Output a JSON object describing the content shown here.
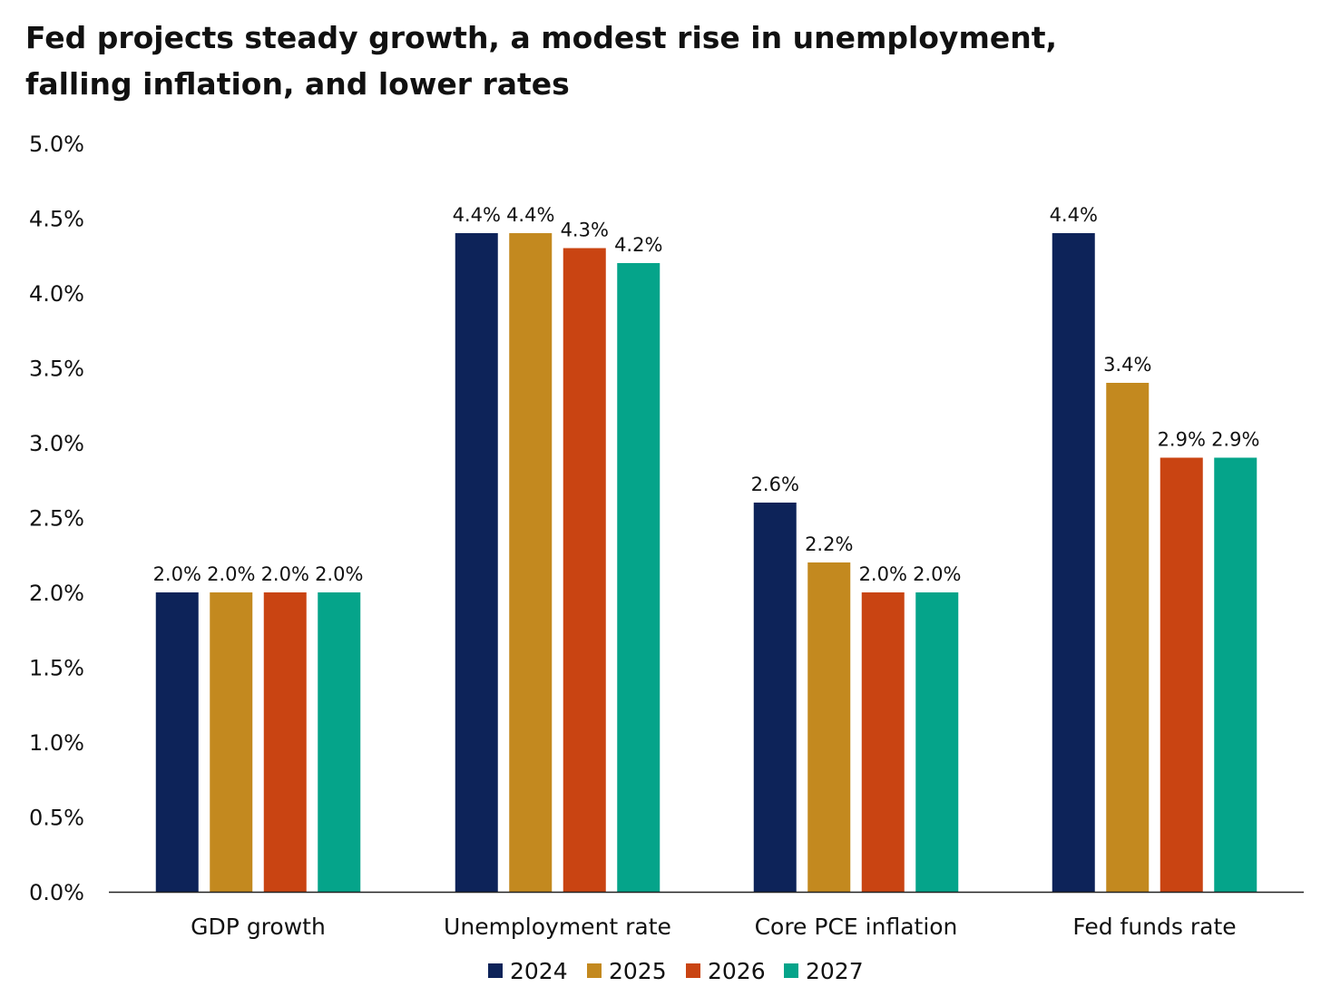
{
  "chart_data": {
    "type": "bar",
    "title_lines": [
      "Fed projects steady growth, a modest rise in unemployment,",
      "falling inflation, and lower rates"
    ],
    "categories": [
      "GDP growth",
      "Unemployment rate",
      "Core PCE inflation",
      "Fed funds rate"
    ],
    "series": [
      {
        "name": "2024",
        "color": "#0d2359",
        "values": [
          2.0,
          4.4,
          2.6,
          4.4
        ],
        "labels": [
          "2.0%",
          "4.4%",
          "2.6%",
          "4.4%"
        ]
      },
      {
        "name": "2025",
        "color": "#c3891f",
        "values": [
          2.0,
          4.4,
          2.2,
          3.4
        ],
        "labels": [
          "2.0%",
          "4.4%",
          "2.2%",
          "3.4%"
        ]
      },
      {
        "name": "2026",
        "color": "#c94412",
        "values": [
          2.0,
          4.3,
          2.0,
          2.9
        ],
        "labels": [
          "2.0%",
          "4.3%",
          "2.0%",
          "2.9%"
        ]
      },
      {
        "name": "2027",
        "color": "#05a48a",
        "values": [
          2.0,
          4.2,
          2.0,
          2.9
        ],
        "labels": [
          "2.0%",
          "4.2%",
          "2.0%",
          "2.9%"
        ]
      }
    ],
    "ylim": [
      0,
      5
    ],
    "yticks": [
      0,
      0.5,
      1.0,
      1.5,
      2.0,
      2.5,
      3.0,
      3.5,
      4.0,
      4.5,
      5.0
    ],
    "ytick_labels": [
      "0.0%",
      "0.5%",
      "1.0%",
      "1.5%",
      "2.0%",
      "2.5%",
      "3.0%",
      "3.5%",
      "4.0%",
      "4.5%",
      "5.0%"
    ],
    "grid": false,
    "legend": "bottom",
    "xlabel": "",
    "ylabel": ""
  }
}
